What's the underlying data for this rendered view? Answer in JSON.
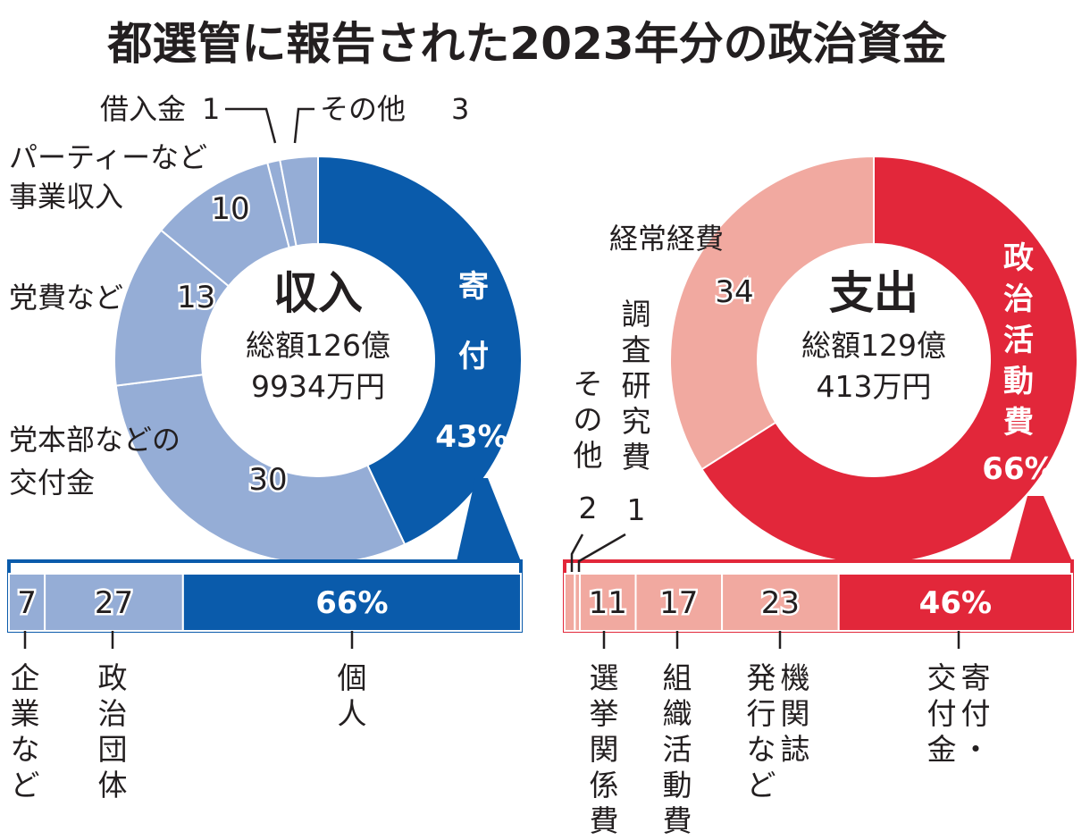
{
  "title": "都選管に報告された2023年分の政治資金",
  "colors": {
    "income_dark": "#0a5bab",
    "income_light": "#95add6",
    "expense_dark": "#e2273a",
    "expense_light": "#f1a9a0",
    "text": "#231f20"
  },
  "chart_data": [
    {
      "type": "pie",
      "name": "income",
      "center_title": "収入",
      "total_line1": "総額126億",
      "total_line2": "9934万円",
      "unit": "%",
      "slices": [
        {
          "label": "寄付",
          "value": 43,
          "value_text": "43%"
        },
        {
          "label": "党本部などの交付金",
          "label_lines": [
            "党本部などの",
            "交付金"
          ],
          "value": 30,
          "value_text": "30"
        },
        {
          "label": "党費など",
          "value": 13,
          "value_text": "13"
        },
        {
          "label": "パーティーなど事業収入",
          "label_lines": [
            "パーティーなど",
            "事業収入"
          ],
          "value": 10,
          "value_text": "10"
        },
        {
          "label": "借入金",
          "value": 1,
          "value_text": "1"
        },
        {
          "label": "その他",
          "value": 3,
          "value_text": "3"
        }
      ]
    },
    {
      "type": "pie",
      "name": "expense",
      "center_title": "支出",
      "total_line1": "総額129億",
      "total_line2": "413万円",
      "unit": "%",
      "slices": [
        {
          "label": "政治活動費",
          "value": 66,
          "value_text": "66%"
        },
        {
          "label": "経常経費",
          "value": 34,
          "value_text": "34"
        }
      ]
    },
    {
      "type": "bar",
      "name": "donation_breakdown",
      "stacked": true,
      "parent": "寄付",
      "categories": [
        "企業など",
        "政治団体",
        "個人"
      ],
      "values": [
        7,
        27,
        66
      ],
      "value_texts": [
        "7",
        "27",
        "66%"
      ]
    },
    {
      "type": "bar",
      "name": "political_activity_breakdown",
      "stacked": true,
      "parent": "政治活動費",
      "categories": [
        "その他",
        "調査研究費",
        "選挙関係費",
        "組織活動費",
        "機関誌発行など",
        "寄付・交付金"
      ],
      "values": [
        2,
        1,
        11,
        17,
        23,
        46
      ],
      "value_texts": [
        "2",
        "1",
        "11",
        "17",
        "23",
        "46%"
      ]
    }
  ]
}
